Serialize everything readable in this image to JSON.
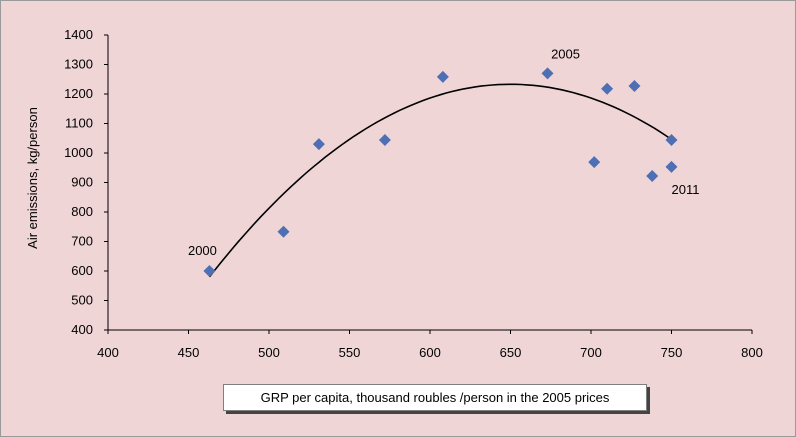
{
  "chart_data": {
    "type": "scatter",
    "xlabel": "GRP per capita, thousand roubles /person in the 2005 prices",
    "ylabel": "Air emissions, kg/person",
    "xlim": [
      400,
      800
    ],
    "ylim": [
      400,
      1400
    ],
    "x_ticks": [
      "400",
      "450",
      "500",
      "550",
      "600",
      "650",
      "700",
      "750",
      "800"
    ],
    "y_ticks": [
      "400",
      "500",
      "600",
      "700",
      "800",
      "900",
      "1000",
      "1100",
      "1200",
      "1300",
      "1400"
    ],
    "grid": false,
    "points": [
      {
        "x": 463,
        "y": 600
      },
      {
        "x": 509,
        "y": 733
      },
      {
        "x": 531,
        "y": 1030
      },
      {
        "x": 572,
        "y": 1044
      },
      {
        "x": 608,
        "y": 1258
      },
      {
        "x": 673,
        "y": 1270
      },
      {
        "x": 702,
        "y": 969
      },
      {
        "x": 710,
        "y": 1218
      },
      {
        "x": 727,
        "y": 1227
      },
      {
        "x": 738,
        "y": 922
      },
      {
        "x": 750,
        "y": 1044
      },
      {
        "x": 750,
        "y": 953
      }
    ],
    "trendline": {
      "type": "polynomial-2",
      "x_range": [
        463,
        750
      ],
      "vertex": {
        "x": 650,
        "y": 1233
      },
      "y_at_start": 580
    },
    "annotations": [
      {
        "text": "2000",
        "x": 463,
        "y": 600
      },
      {
        "text": "2005",
        "x": 673,
        "y": 1270
      },
      {
        "text": "2011",
        "x": 750,
        "y": 953
      }
    ],
    "colors": {
      "background": "#f0d5d7",
      "marker": "#4f6fb5",
      "trendline": "#000000"
    }
  }
}
